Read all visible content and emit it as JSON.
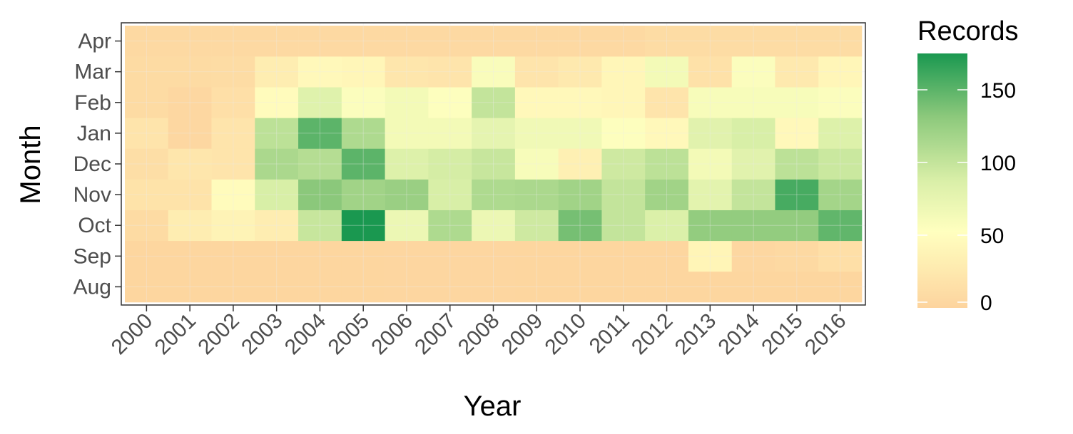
{
  "chart_data": {
    "type": "heatmap",
    "title": "",
    "xlabel": "Year",
    "ylabel": "Month",
    "x": [
      "2000",
      "2001",
      "2002",
      "2003",
      "2004",
      "2005",
      "2006",
      "2007",
      "2008",
      "2009",
      "2010",
      "2011",
      "2012",
      "2013",
      "2014",
      "2015",
      "2016"
    ],
    "y": [
      "Aug",
      "Sep",
      "Oct",
      "Nov",
      "Dec",
      "Jan",
      "Feb",
      "Mar",
      "Apr"
    ],
    "values": [
      [
        2,
        2,
        2,
        2,
        2,
        2,
        3,
        3,
        3,
        2,
        2,
        2,
        2,
        2,
        2,
        2,
        2
      ],
      [
        2,
        2,
        2,
        2,
        2,
        2,
        3,
        3,
        3,
        2,
        2,
        2,
        2,
        40,
        4,
        6,
        14
      ],
      [
        8,
        30,
        38,
        30,
        98,
        175,
        70,
        112,
        70,
        94,
        140,
        100,
        86,
        128,
        128,
        128,
        148
      ],
      [
        18,
        18,
        48,
        88,
        132,
        120,
        124,
        88,
        112,
        114,
        120,
        100,
        120,
        78,
        100,
        158,
        118
      ],
      [
        12,
        22,
        20,
        114,
        108,
        150,
        84,
        90,
        98,
        60,
        34,
        94,
        104,
        64,
        80,
        104,
        96
      ],
      [
        20,
        4,
        20,
        104,
        150,
        112,
        64,
        64,
        76,
        66,
        66,
        54,
        44,
        80,
        88,
        44,
        84
      ],
      [
        8,
        4,
        14,
        48,
        82,
        56,
        64,
        54,
        100,
        44,
        44,
        42,
        20,
        60,
        60,
        60,
        56
      ],
      [
        8,
        8,
        10,
        30,
        44,
        42,
        22,
        20,
        58,
        20,
        26,
        42,
        64,
        16,
        56,
        26,
        42
      ],
      [
        6,
        6,
        6,
        6,
        6,
        6,
        6,
        6,
        6,
        6,
        6,
        6,
        10,
        10,
        10,
        10,
        10
      ]
    ],
    "legend": {
      "title": "Records",
      "position": "right",
      "ticks": [
        0,
        50,
        100,
        150
      ],
      "range": [
        0,
        175
      ]
    },
    "grid": true,
    "colors": {
      "low": "#fdd49e",
      "mid": "#ffffbf",
      "high": "#1a9850",
      "panel_border": "#333333",
      "grid": "#ebebeb"
    }
  }
}
